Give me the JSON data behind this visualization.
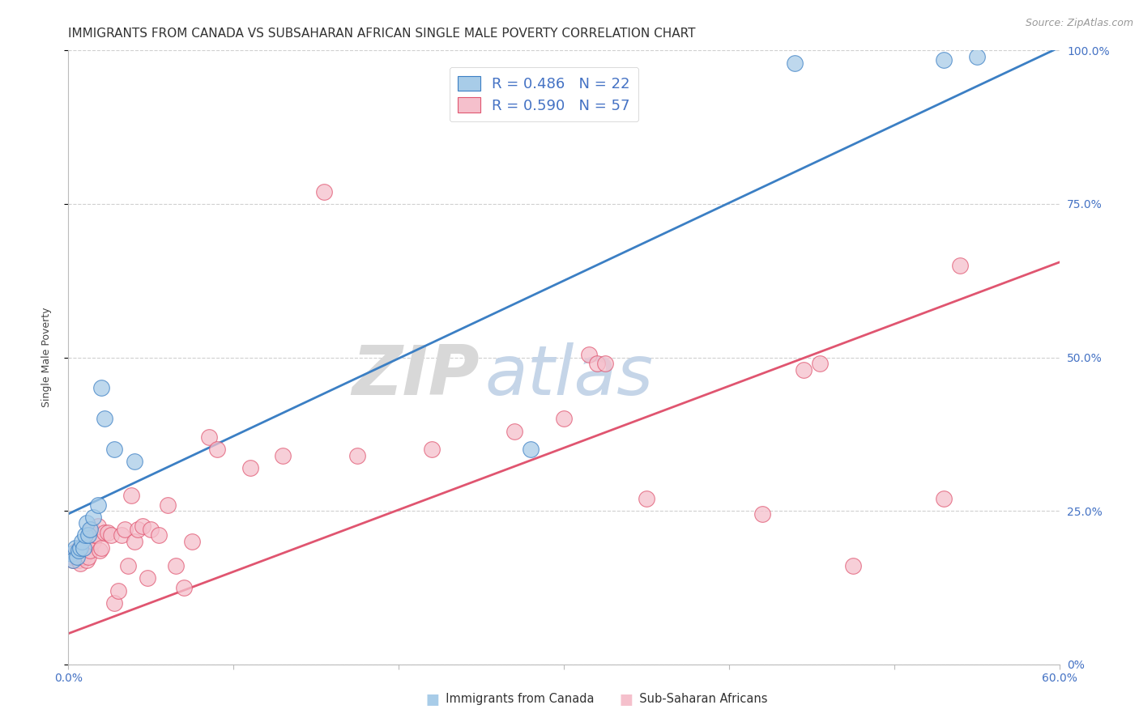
{
  "title": "IMMIGRANTS FROM CANADA VS SUBSAHARAN AFRICAN SINGLE MALE POVERTY CORRELATION CHART",
  "source": "Source: ZipAtlas.com",
  "ylabel": "Single Male Poverty",
  "legend_label1": "Immigrants from Canada",
  "legend_label2": "Sub-Saharan Africans",
  "R1": 0.486,
  "N1": 22,
  "R2": 0.59,
  "N2": 57,
  "blue_scatter_color": "#a8cce8",
  "pink_scatter_color": "#f5c0cc",
  "blue_line_color": "#3b7fc4",
  "pink_line_color": "#e05570",
  "blue_edge_color": "#3b7fc4",
  "pink_edge_color": "#e05570",
  "xmin": 0.0,
  "xmax": 0.6,
  "ymin": 0.0,
  "ymax": 1.0,
  "yticks": [
    0.0,
    0.25,
    0.5,
    0.75,
    1.0
  ],
  "blue_x": [
    0.002,
    0.003,
    0.004,
    0.005,
    0.006,
    0.007,
    0.008,
    0.009,
    0.01,
    0.011,
    0.012,
    0.013,
    0.015,
    0.018,
    0.02,
    0.022,
    0.028,
    0.04,
    0.28,
    0.44,
    0.53,
    0.55
  ],
  "blue_y": [
    0.18,
    0.17,
    0.19,
    0.175,
    0.185,
    0.19,
    0.2,
    0.19,
    0.21,
    0.23,
    0.21,
    0.22,
    0.24,
    0.26,
    0.45,
    0.4,
    0.35,
    0.33,
    0.35,
    0.98,
    0.985,
    0.99
  ],
  "pink_x": [
    0.002,
    0.003,
    0.004,
    0.005,
    0.006,
    0.007,
    0.008,
    0.009,
    0.01,
    0.011,
    0.012,
    0.013,
    0.014,
    0.015,
    0.016,
    0.017,
    0.018,
    0.019,
    0.02,
    0.022,
    0.024,
    0.026,
    0.028,
    0.03,
    0.032,
    0.034,
    0.036,
    0.038,
    0.04,
    0.042,
    0.045,
    0.048,
    0.05,
    0.055,
    0.06,
    0.065,
    0.07,
    0.075,
    0.085,
    0.09,
    0.11,
    0.13,
    0.155,
    0.175,
    0.22,
    0.27,
    0.3,
    0.315,
    0.32,
    0.325,
    0.35,
    0.42,
    0.445,
    0.455,
    0.475,
    0.53,
    0.54
  ],
  "pink_y": [
    0.175,
    0.17,
    0.18,
    0.185,
    0.17,
    0.165,
    0.18,
    0.175,
    0.19,
    0.17,
    0.175,
    0.185,
    0.22,
    0.2,
    0.21,
    0.21,
    0.225,
    0.185,
    0.19,
    0.215,
    0.215,
    0.21,
    0.1,
    0.12,
    0.21,
    0.22,
    0.16,
    0.275,
    0.2,
    0.22,
    0.225,
    0.14,
    0.22,
    0.21,
    0.26,
    0.16,
    0.125,
    0.2,
    0.37,
    0.35,
    0.32,
    0.34,
    0.77,
    0.34,
    0.35,
    0.38,
    0.4,
    0.505,
    0.49,
    0.49,
    0.27,
    0.245,
    0.48,
    0.49,
    0.16,
    0.27,
    0.65
  ],
  "blue_line_y0": 0.245,
  "blue_line_y1": 1.005,
  "pink_line_y0": 0.05,
  "pink_line_y1": 0.655,
  "watermark_zip": "ZIP",
  "watermark_atlas": "atlas",
  "background_color": "#ffffff",
  "grid_color": "#d0d0d0",
  "title_fontsize": 11,
  "axis_label_fontsize": 9,
  "tick_fontsize": 10,
  "legend_fontsize": 13,
  "tick_color": "#4472c4",
  "legend_text_color": "#4472c4"
}
